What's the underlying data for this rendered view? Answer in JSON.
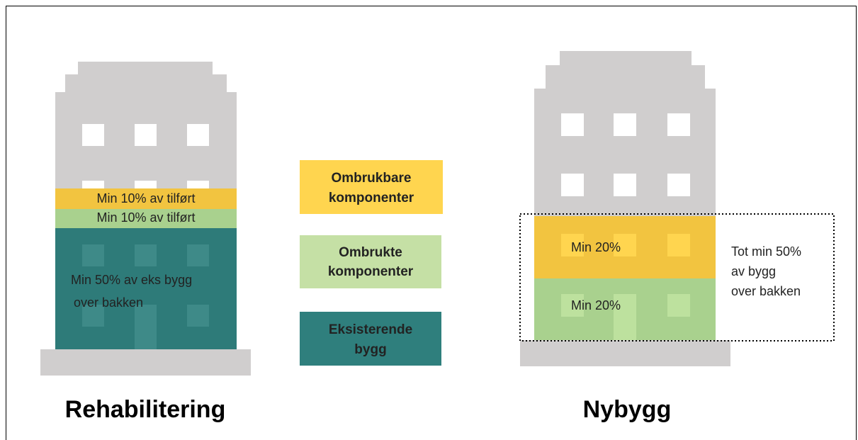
{
  "left": {
    "title": "Rehabilitering",
    "bands": [
      {
        "lines": [
          "Min 10% av tilført"
        ]
      },
      {
        "lines": [
          "Min 10% av tilført"
        ]
      },
      {
        "lines": [
          "Min 50% av eks bygg",
          "over bakken"
        ]
      }
    ]
  },
  "legend": [
    {
      "lines": [
        "Ombrukbare",
        "komponenter"
      ]
    },
    {
      "lines": [
        "Ombrukte",
        "komponenter"
      ]
    },
    {
      "lines": [
        "Eksisterende",
        "bygg"
      ]
    }
  ],
  "right": {
    "title": "Nybygg",
    "bands": [
      {
        "lines": [
          "Min 20%"
        ]
      },
      {
        "lines": [
          "Min 20%"
        ]
      }
    ],
    "total": {
      "lines": [
        "Tot min 50%",
        "av bygg",
        "over bakken"
      ]
    }
  }
}
